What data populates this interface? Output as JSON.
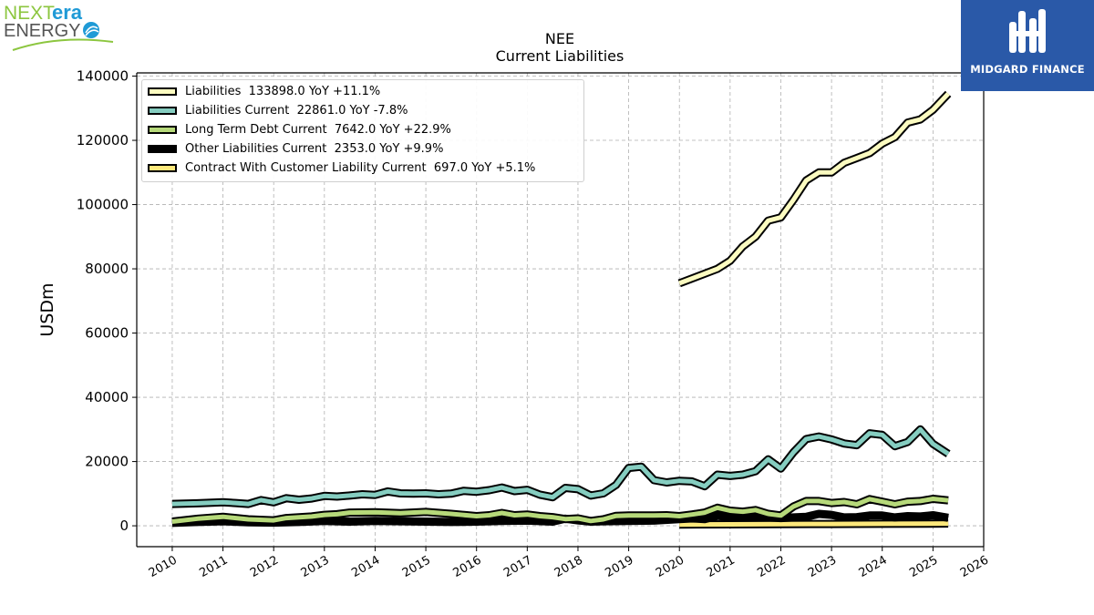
{
  "branding": {
    "left_logo": {
      "word_next": "NEXT",
      "word_era": "era",
      "word_energy": "ENERGY"
    },
    "right_logo": {
      "text": "MIDGARD FINANCE",
      "color": "#2a59a8"
    }
  },
  "colors": {
    "liabilities": "#fbfbc0",
    "liabilities_current": "#85cdc0",
    "long_term_debt_current": "#b6d97a",
    "other_liabilities_current": "#000000",
    "contract_liability": "#fde87b",
    "grid": "#b0b0b0"
  },
  "chart_data": {
    "type": "line",
    "title": "NEE",
    "subtitle": "Current  Liabilities",
    "xlabel": "",
    "ylabel": "USDm",
    "xlim": [
      2009.3,
      2026
    ],
    "ylim": [
      -6500,
      141000
    ],
    "x_ticks": [
      "2010",
      "2011",
      "2012",
      "2013",
      "2014",
      "2015",
      "2016",
      "2017",
      "2018",
      "2019",
      "2020",
      "2021",
      "2022",
      "2023",
      "2024",
      "2025",
      "2026"
    ],
    "y_ticks": [
      "0",
      "20000",
      "40000",
      "60000",
      "80000",
      "100000",
      "120000",
      "140000"
    ],
    "grid": true,
    "legend_position": "top-left",
    "series": [
      {
        "name": "Liabilities",
        "legend_label": "Liabilities  133898.0 YoY +11.1%",
        "color_key": "liabilities",
        "points": [
          [
            2020.0,
            75500
          ],
          [
            2020.75,
            80000
          ],
          [
            2021.0,
            82500
          ],
          [
            2021.25,
            87000
          ],
          [
            2021.5,
            90000
          ],
          [
            2021.75,
            95000
          ],
          [
            2022.0,
            96000
          ],
          [
            2022.25,
            101500
          ],
          [
            2022.5,
            107500
          ],
          [
            2022.75,
            110000
          ],
          [
            2023.0,
            110000
          ],
          [
            2023.25,
            113000
          ],
          [
            2023.5,
            114500
          ],
          [
            2023.75,
            116000
          ],
          [
            2024.0,
            119000
          ],
          [
            2024.25,
            121000
          ],
          [
            2024.5,
            125500
          ],
          [
            2024.75,
            126500
          ],
          [
            2025.0,
            129500
          ],
          [
            2025.3,
            134500
          ]
        ]
      },
      {
        "name": "Liabilities Current",
        "legend_label": "Liabilities Current  22861.0 YoY -7.8%",
        "color_key": "liabilities_current",
        "points": [
          [
            2010.0,
            6800
          ],
          [
            2010.5,
            7000
          ],
          [
            2011.0,
            7300
          ],
          [
            2011.25,
            7100
          ],
          [
            2011.5,
            6800
          ],
          [
            2011.75,
            8000
          ],
          [
            2012.0,
            7300
          ],
          [
            2012.25,
            8600
          ],
          [
            2012.5,
            8100
          ],
          [
            2012.75,
            8500
          ],
          [
            2013.0,
            9300
          ],
          [
            2013.25,
            9100
          ],
          [
            2013.5,
            9400
          ],
          [
            2013.75,
            9800
          ],
          [
            2014.0,
            9600
          ],
          [
            2014.25,
            10700
          ],
          [
            2014.5,
            10100
          ],
          [
            2014.75,
            10000
          ],
          [
            2015.0,
            10100
          ],
          [
            2015.25,
            9800
          ],
          [
            2015.5,
            10000
          ],
          [
            2015.75,
            10900
          ],
          [
            2016.0,
            10600
          ],
          [
            2016.25,
            11100
          ],
          [
            2016.5,
            11900
          ],
          [
            2016.75,
            10800
          ],
          [
            2017.0,
            11200
          ],
          [
            2017.25,
            9700
          ],
          [
            2017.5,
            8900
          ],
          [
            2017.75,
            11800
          ],
          [
            2018.0,
            11400
          ],
          [
            2018.25,
            9400
          ],
          [
            2018.5,
            10100
          ],
          [
            2018.75,
            12700
          ],
          [
            2019.0,
            18000
          ],
          [
            2019.25,
            18400
          ],
          [
            2019.5,
            14200
          ],
          [
            2019.75,
            13500
          ],
          [
            2020.0,
            14000
          ],
          [
            2020.25,
            13800
          ],
          [
            2020.5,
            12300
          ],
          [
            2020.75,
            15900
          ],
          [
            2021.0,
            15500
          ],
          [
            2021.25,
            15900
          ],
          [
            2021.5,
            17000
          ],
          [
            2021.75,
            20700
          ],
          [
            2022.0,
            17800
          ],
          [
            2022.25,
            22900
          ],
          [
            2022.5,
            27000
          ],
          [
            2022.75,
            27800
          ],
          [
            2023.0,
            26900
          ],
          [
            2023.25,
            25600
          ],
          [
            2023.5,
            25100
          ],
          [
            2023.75,
            28800
          ],
          [
            2024.0,
            28300
          ],
          [
            2024.25,
            24800
          ],
          [
            2024.5,
            26100
          ],
          [
            2024.75,
            30000
          ],
          [
            2025.0,
            25500
          ],
          [
            2025.3,
            22400
          ]
        ]
      },
      {
        "name": "Long Term Debt Current",
        "legend_label": "Long Term Debt Current  7642.0 YoY +22.9%",
        "color_key": "long_term_debt_current",
        "points": [
          [
            2010.0,
            1300
          ],
          [
            2010.5,
            2200
          ],
          [
            2011.0,
            2800
          ],
          [
            2011.5,
            2000
          ],
          [
            2012.0,
            1700
          ],
          [
            2012.25,
            2400
          ],
          [
            2012.75,
            2900
          ],
          [
            2013.0,
            3400
          ],
          [
            2013.25,
            3600
          ],
          [
            2013.5,
            4100
          ],
          [
            2014.0,
            4200
          ],
          [
            2014.5,
            3900
          ],
          [
            2015.0,
            4300
          ],
          [
            2015.5,
            3700
          ],
          [
            2016.0,
            3000
          ],
          [
            2016.25,
            3300
          ],
          [
            2016.5,
            4000
          ],
          [
            2016.75,
            3300
          ],
          [
            2017.0,
            3500
          ],
          [
            2017.25,
            3000
          ],
          [
            2017.5,
            2700
          ],
          [
            2017.75,
            2100
          ],
          [
            2018.0,
            2300
          ],
          [
            2018.25,
            1500
          ],
          [
            2018.5,
            2000
          ],
          [
            2018.75,
            3100
          ],
          [
            2019.0,
            3200
          ],
          [
            2019.5,
            3200
          ],
          [
            2019.75,
            3300
          ],
          [
            2020.0,
            3000
          ],
          [
            2020.25,
            3500
          ],
          [
            2020.5,
            4100
          ],
          [
            2020.75,
            5600
          ],
          [
            2021.0,
            4700
          ],
          [
            2021.25,
            4400
          ],
          [
            2021.5,
            4900
          ],
          [
            2021.75,
            3700
          ],
          [
            2022.0,
            3200
          ],
          [
            2022.25,
            6000
          ],
          [
            2022.5,
            7700
          ],
          [
            2022.75,
            7700
          ],
          [
            2023.0,
            7100
          ],
          [
            2023.25,
            7400
          ],
          [
            2023.5,
            6700
          ],
          [
            2023.75,
            8300
          ],
          [
            2024.0,
            7500
          ],
          [
            2024.25,
            6700
          ],
          [
            2024.5,
            7500
          ],
          [
            2024.75,
            7700
          ],
          [
            2025.0,
            8400
          ],
          [
            2025.3,
            7900
          ]
        ]
      },
      {
        "name": "Other Liabilities Current",
        "legend_label": "Other Liabilities Current  2353.0 YoY +9.9%",
        "color_key": "other_liabilities_current",
        "points": [
          [
            2010.0,
            900
          ],
          [
            2010.5,
            1200
          ],
          [
            2011.0,
            1400
          ],
          [
            2011.5,
            1100
          ],
          [
            2012.0,
            1000
          ],
          [
            2012.5,
            1200
          ],
          [
            2013.0,
            1500
          ],
          [
            2013.5,
            1300
          ],
          [
            2014.0,
            1500
          ],
          [
            2014.5,
            1400
          ],
          [
            2015.0,
            1300
          ],
          [
            2015.5,
            1200
          ],
          [
            2016.0,
            1300
          ],
          [
            2016.5,
            1500
          ],
          [
            2017.0,
            1600
          ],
          [
            2017.5,
            1300
          ],
          [
            2017.75,
            2200
          ],
          [
            2018.0,
            1700
          ],
          [
            2018.25,
            1300
          ],
          [
            2018.5,
            1400
          ],
          [
            2019.0,
            1500
          ],
          [
            2019.5,
            1600
          ],
          [
            2020.0,
            2100
          ],
          [
            2020.25,
            2300
          ],
          [
            2020.5,
            2100
          ],
          [
            2020.75,
            3100
          ],
          [
            2021.0,
            2700
          ],
          [
            2021.25,
            2600
          ],
          [
            2021.5,
            2800
          ],
          [
            2021.75,
            2600
          ],
          [
            2022.0,
            2400
          ],
          [
            2022.25,
            2600
          ],
          [
            2022.5,
            2800
          ],
          [
            2022.75,
            3700
          ],
          [
            2023.0,
            3400
          ],
          [
            2023.25,
            2600
          ],
          [
            2023.5,
            2700
          ],
          [
            2023.75,
            3200
          ],
          [
            2024.0,
            3200
          ],
          [
            2024.25,
            2600
          ],
          [
            2024.5,
            3000
          ],
          [
            2024.75,
            2900
          ],
          [
            2025.0,
            3300
          ],
          [
            2025.3,
            2500
          ]
        ]
      },
      {
        "name": "Contract With Customer Liability Current",
        "legend_label": "Contract With Customer Liability Current  697.0 YoY +5.1%",
        "color_key": "contract_liability",
        "points": [
          [
            2020.0,
            400
          ],
          [
            2021.0,
            450
          ],
          [
            2022.0,
            500
          ],
          [
            2023.0,
            550
          ],
          [
            2024.0,
            620
          ],
          [
            2025.3,
            697
          ]
        ]
      }
    ]
  }
}
